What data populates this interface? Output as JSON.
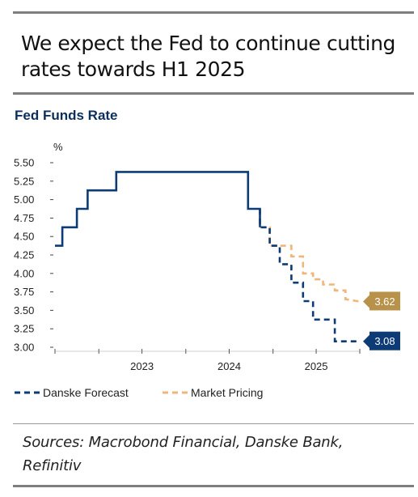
{
  "header": {
    "title": "We expect the Fed to continue cutting rates towards H1 2025"
  },
  "chart_data": {
    "type": "line",
    "title": "Fed Funds Rate",
    "ylabel": "%",
    "xlabel": "",
    "ylim": [
      3.0,
      5.5
    ],
    "xlim": [
      "2022-07-01",
      "2025-12-31"
    ],
    "y_ticks": [
      "5.50",
      "5.25",
      "5.00",
      "4.75",
      "4.50",
      "4.25",
      "4.00",
      "3.75",
      "3.50",
      "3.25",
      "3.00"
    ],
    "x_ticks": [
      "2023",
      "2024",
      "2025"
    ],
    "legend_position": "bottom-left",
    "grid": false,
    "series": [
      {
        "name": "Danske Forecast",
        "style": "solid-then-dashed",
        "color": "#0d3b76",
        "points": [
          [
            "2022-07-01",
            4.375
          ],
          [
            "2022-08-01",
            4.375
          ],
          [
            "2022-08-01",
            4.625
          ],
          [
            "2022-10-01",
            4.625
          ],
          [
            "2022-10-01",
            4.875
          ],
          [
            "2022-11-15",
            4.875
          ],
          [
            "2022-11-15",
            5.125
          ],
          [
            "2023-03-15",
            5.125
          ],
          [
            "2023-03-15",
            5.375
          ],
          [
            "2024-09-18",
            5.375
          ],
          [
            "2024-09-18",
            4.875
          ],
          [
            "2024-11-07",
            4.875
          ],
          [
            "2024-11-07",
            4.625
          ],
          [
            "2024-12-18",
            4.625
          ],
          [
            "2024-12-18",
            4.375
          ],
          [
            "2025-01-29",
            4.375
          ],
          [
            "2025-01-29",
            4.125
          ],
          [
            "2025-03-19",
            4.125
          ],
          [
            "2025-03-19",
            3.875
          ],
          [
            "2025-05-07",
            3.875
          ],
          [
            "2025-05-07",
            3.625
          ],
          [
            "2025-06-18",
            3.625
          ],
          [
            "2025-06-18",
            3.375
          ],
          [
            "2025-09-17",
            3.375
          ],
          [
            "2025-09-17",
            3.08
          ],
          [
            "2025-12-31",
            3.08
          ]
        ],
        "dashed_from": "2024-11-07",
        "end_label": "3.08"
      },
      {
        "name": "Market Pricing",
        "style": "dashed",
        "color": "#f0b57a",
        "points": [
          [
            "2024-11-07",
            4.625
          ],
          [
            "2024-12-18",
            4.625
          ],
          [
            "2024-12-18",
            4.375
          ],
          [
            "2025-03-19",
            4.375
          ],
          [
            "2025-03-19",
            4.23
          ],
          [
            "2025-05-07",
            4.23
          ],
          [
            "2025-05-07",
            4.0
          ],
          [
            "2025-06-18",
            4.0
          ],
          [
            "2025-06-18",
            3.92
          ],
          [
            "2025-07-30",
            3.92
          ],
          [
            "2025-07-30",
            3.85
          ],
          [
            "2025-09-17",
            3.85
          ],
          [
            "2025-09-17",
            3.77
          ],
          [
            "2025-11-01",
            3.77
          ],
          [
            "2025-11-01",
            3.65
          ],
          [
            "2025-12-31",
            3.62
          ]
        ],
        "end_label": "3.62"
      }
    ]
  },
  "footer": {
    "source": "Sources: Macrobond Financial, Danske Bank, Refinitiv"
  }
}
